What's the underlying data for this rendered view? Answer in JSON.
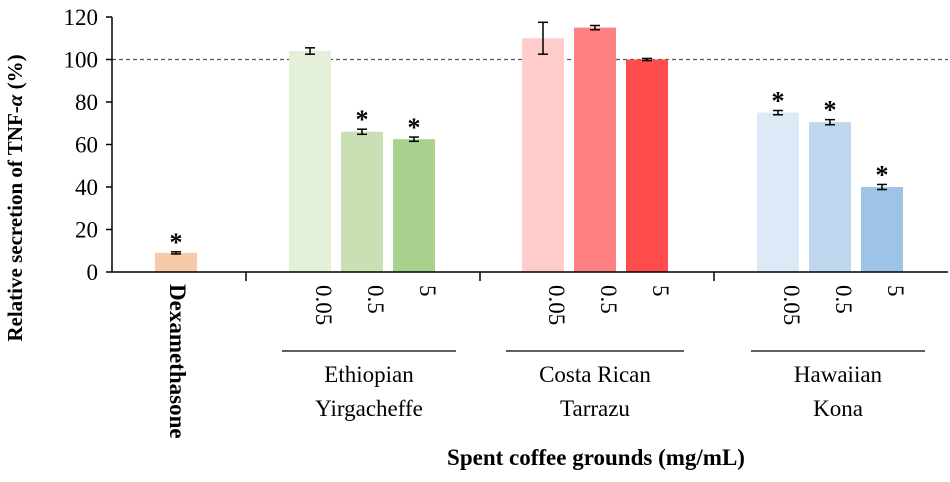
{
  "chart_data": {
    "type": "bar",
    "ylabel_prefix": "Relative secretion of TNF-",
    "ylabel_symbol": "α",
    "ylabel_suffix": " (%)",
    "xlabel": "Spent coffee grounds (mg/mL)",
    "ylim": [
      0,
      120
    ],
    "yticks": [
      0,
      20,
      40,
      60,
      80,
      100,
      120
    ],
    "yticks_text": [
      "0",
      "20",
      "40",
      "60",
      "80",
      "100",
      "120"
    ],
    "reference_line": 100,
    "significance_marker": "*",
    "control": {
      "label": "Dexamethasone",
      "value": 9,
      "error": 0.5,
      "significant": true,
      "color": "#f8c9a8"
    },
    "groups": [
      {
        "name_line1": "Ethiopian",
        "name_line2": "Yirgacheffe",
        "doses": [
          "0.05",
          "0.5",
          "5"
        ],
        "values": [
          104,
          66,
          62.5
        ],
        "errors": [
          1.5,
          1.2,
          1.0
        ],
        "significant": [
          false,
          true,
          true
        ],
        "colors": [
          "#e4f0d8",
          "#c8e0b4",
          "#a9d18e"
        ]
      },
      {
        "name_line1": "Costa Rican",
        "name_line2": "Tarrazu",
        "doses": [
          "0.05",
          "0.5",
          "5"
        ],
        "values": [
          110,
          115,
          100
        ],
        "errors": [
          7.5,
          1.0,
          0.5
        ],
        "significant": [
          false,
          false,
          false
        ],
        "colors": [
          "#ffcccc",
          "#ff8080",
          "#ff4d4d"
        ]
      },
      {
        "name_line1": "Hawaiian",
        "name_line2": "Kona",
        "doses": [
          "0.05",
          "0.5",
          "5"
        ],
        "values": [
          75,
          70.5,
          40
        ],
        "errors": [
          1.0,
          1.2,
          1.2
        ],
        "significant": [
          true,
          true,
          true
        ],
        "colors": [
          "#dce9f7",
          "#bed7ee",
          "#9dc3e6"
        ]
      }
    ]
  }
}
